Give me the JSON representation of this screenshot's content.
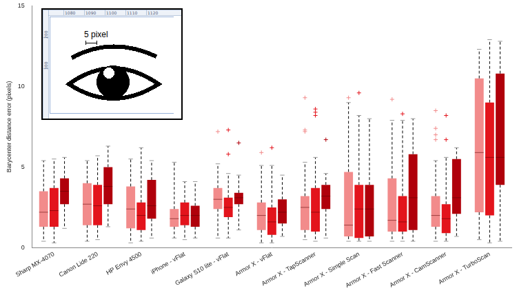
{
  "chart_data": {
    "type": "boxplot",
    "y_label": "Barycenter distance error (pixels)",
    "categories": [
      "Sharp MX-4070",
      "Canon Lide 220",
      "HP Envy 4500",
      "iPhone - vFlat",
      "Galaxy S10 lite - vFlat",
      "Armor X - vFlat",
      "Armor X - TapScanner",
      "Armor X - Simple Scan",
      "Armor X - Fast Scanner",
      "Armor X - CamScanner",
      "Armor X - TurboScan"
    ],
    "series": [
      {
        "color": "#f28b8b",
        "values": [
          {
            "min": 0.4,
            "q1": 1.3,
            "median": 2.2,
            "q3": 3.5,
            "max": 5.4,
            "outliers": []
          },
          {
            "min": 0.4,
            "q1": 1.4,
            "median": 2.7,
            "q3": 4.0,
            "max": 5.4,
            "outliers": []
          },
          {
            "min": 0.3,
            "q1": 1.2,
            "median": 2.4,
            "q3": 3.8,
            "max": 5.5,
            "outliers": []
          },
          {
            "min": 0.6,
            "q1": 1.3,
            "median": 1.8,
            "q3": 2.4,
            "max": 5.3,
            "outliers": []
          },
          {
            "min": 0.6,
            "q1": 2.4,
            "median": 3.0,
            "q3": 3.7,
            "max": 5.2,
            "outliers": [
              7.2
            ]
          },
          {
            "min": 0.3,
            "q1": 1.1,
            "median": 2.0,
            "q3": 2.8,
            "max": 5.1,
            "outliers": [
              5.9
            ]
          },
          {
            "min": 0.5,
            "q1": 1.1,
            "median": 2.5,
            "q3": 3.2,
            "max": 5.3,
            "outliers": [
              7.2,
              7.3,
              9.3
            ]
          },
          {
            "min": 0.4,
            "q1": 0.7,
            "median": 1.4,
            "q3": 4.7,
            "max": 9.0,
            "outliers": [
              9.3
            ]
          },
          {
            "min": 0.4,
            "q1": 1.0,
            "median": 1.7,
            "q3": 4.3,
            "max": 7.9,
            "outliers": [
              9.2
            ]
          },
          {
            "min": 0.4,
            "q1": 1.3,
            "median": 2.0,
            "q3": 3.2,
            "max": 5.4,
            "outliers": [
              6.7,
              7.0,
              7.4,
              8.5
            ]
          },
          {
            "min": 0.5,
            "q1": 2.2,
            "median": 5.9,
            "q3": 10.5,
            "max": 12.3,
            "outliers": []
          }
        ]
      },
      {
        "color": "#e3141c",
        "values": [
          {
            "min": 0.3,
            "q1": 1.3,
            "median": 2.3,
            "q3": 3.7,
            "max": 5.5,
            "outliers": []
          },
          {
            "min": 0.5,
            "q1": 1.4,
            "median": 2.6,
            "q3": 3.9,
            "max": 5.7,
            "outliers": []
          },
          {
            "min": 0.4,
            "q1": 1.1,
            "median": 2.0,
            "q3": 2.8,
            "max": 6.2,
            "outliers": []
          },
          {
            "min": 0.5,
            "q1": 1.4,
            "median": 2.0,
            "q3": 2.8,
            "max": 4.1,
            "outliers": []
          },
          {
            "min": 0.6,
            "q1": 1.9,
            "median": 2.5,
            "q3": 3.1,
            "max": 4.6,
            "outliers": [
              5.8,
              7.3
            ]
          },
          {
            "min": 0.3,
            "q1": 0.8,
            "median": 1.6,
            "q3": 2.5,
            "max": 5.1,
            "outliers": [
              6.2
            ]
          },
          {
            "min": 0.4,
            "q1": 1.0,
            "median": 2.2,
            "q3": 3.7,
            "max": 5.6,
            "outliers": [
              8.2,
              8.4,
              8.6
            ]
          },
          {
            "min": 0.4,
            "q1": 0.6,
            "median": 2.4,
            "q3": 3.9,
            "max": 8.2,
            "outliers": [
              9.6
            ]
          },
          {
            "min": 0.4,
            "q1": 1.0,
            "median": 1.6,
            "q3": 3.2,
            "max": 7.9,
            "outliers": [
              8.3
            ]
          },
          {
            "min": 0.4,
            "q1": 0.9,
            "median": 1.8,
            "q3": 2.7,
            "max": 5.6,
            "outliers": [
              6.7,
              8.2
            ]
          },
          {
            "min": 0.3,
            "q1": 2.0,
            "median": 5.6,
            "q3": 9.0,
            "max": 12.9,
            "outliers": []
          }
        ]
      },
      {
        "color": "#b0000b",
        "values": [
          {
            "min": 1.2,
            "q1": 2.7,
            "median": 3.5,
            "q3": 4.3,
            "max": 5.6,
            "outliers": []
          },
          {
            "min": 1.3,
            "q1": 2.7,
            "median": 3.8,
            "q3": 5.0,
            "max": 6.3,
            "outliers": []
          },
          {
            "min": 0.6,
            "q1": 1.8,
            "median": 2.6,
            "q3": 4.2,
            "max": 5.4,
            "outliers": []
          },
          {
            "min": 0.6,
            "q1": 1.3,
            "median": 2.0,
            "q3": 2.6,
            "max": 4.1,
            "outliers": []
          },
          {
            "min": 1.1,
            "q1": 2.7,
            "median": 3.1,
            "q3": 3.4,
            "max": 4.5,
            "outliers": [
              6.5
            ]
          },
          {
            "min": 0.7,
            "q1": 1.5,
            "median": 2.2,
            "q3": 3.0,
            "max": 4.5,
            "outliers": []
          },
          {
            "min": 0.6,
            "q1": 2.4,
            "median": 3.2,
            "q3": 3.9,
            "max": 4.6,
            "outliers": [
              6.7
            ]
          },
          {
            "min": 0.4,
            "q1": 0.7,
            "median": 2.4,
            "q3": 3.9,
            "max": 8.0,
            "outliers": []
          },
          {
            "min": 0.4,
            "q1": 1.1,
            "median": 3.1,
            "q3": 5.8,
            "max": 8.0,
            "outliers": []
          },
          {
            "min": 0.7,
            "q1": 2.1,
            "median": 3.1,
            "q3": 5.5,
            "max": 6.2,
            "outliers": []
          },
          {
            "min": 0.4,
            "q1": 3.9,
            "median": 5.6,
            "q3": 10.8,
            "max": 12.8,
            "outliers": []
          }
        ]
      }
    ],
    "ylim": [
      0,
      15
    ],
    "yticks": [
      0,
      5,
      10,
      15
    ],
    "grid": false
  },
  "inset": {
    "scale_label": "5 pixel",
    "top_ticks": [
      "1080",
      "1090",
      "1100",
      "1110",
      "1120"
    ],
    "left_ticks": [
      "200",
      "300"
    ]
  }
}
